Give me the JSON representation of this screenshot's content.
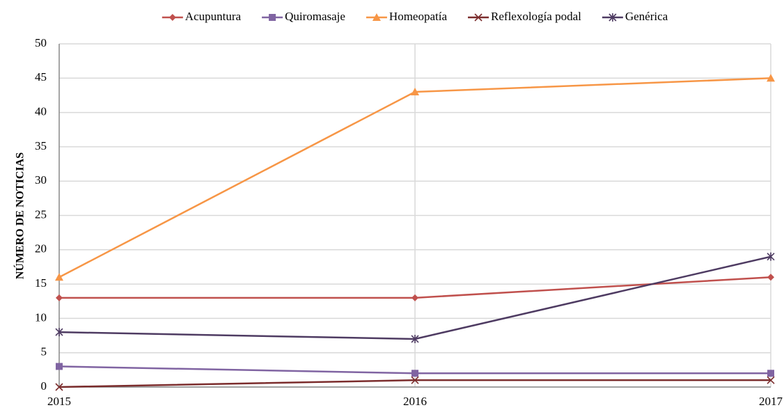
{
  "chart_data": {
    "type": "line",
    "y_label": "NÚMERO DE NOTICIAS",
    "categories": [
      "2015",
      "2016",
      "2017"
    ],
    "series": [
      {
        "name": "Acupuntura",
        "color": "#c0504d",
        "marker": "diamond",
        "values": [
          13,
          13,
          16
        ]
      },
      {
        "name": "Quiromasaje",
        "color": "#8064a2",
        "marker": "square",
        "values": [
          3,
          2,
          2
        ]
      },
      {
        "name": "Homeopatía",
        "color": "#f79646",
        "marker": "triangle",
        "values": [
          16,
          43,
          45
        ]
      },
      {
        "name": "Reflexología podal",
        "color": "#7b2c2c",
        "marker": "x",
        "values": [
          0,
          1,
          1
        ]
      },
      {
        "name": "Genérica",
        "color": "#4e3b62",
        "marker": "star",
        "values": [
          8,
          7,
          19
        ]
      }
    ],
    "ylim": [
      0,
      50
    ],
    "yticks": [
      0,
      5,
      10,
      15,
      20,
      25,
      30,
      35,
      40,
      45,
      50
    ],
    "grid": true,
    "legend": "top"
  }
}
